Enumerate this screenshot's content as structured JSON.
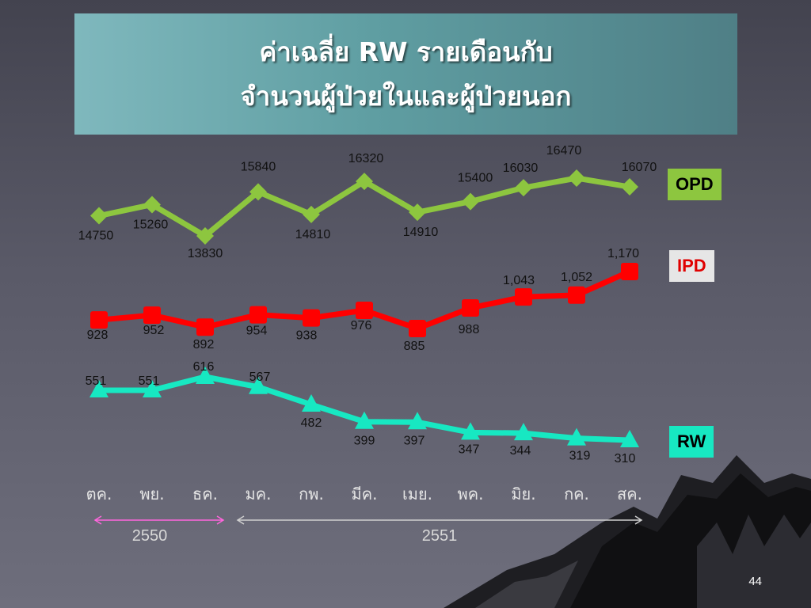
{
  "title": {
    "line1": "ค่าเฉลี่ย RW รายเดือนกับ",
    "line2": "จำนวนผู้ป่วยในและผู้ป่วยนอก"
  },
  "legend": {
    "opd": {
      "label": "OPD",
      "bg": "#8dc63f",
      "fg": "#000000"
    },
    "ipd": {
      "label": "IPD",
      "bg": "#e6e6e6",
      "fg": "#e00000"
    },
    "rw": {
      "label": "RW",
      "bg": "#17e8c2",
      "fg": "#000000"
    }
  },
  "years": [
    {
      "label": "2550",
      "color": "#ff66dd"
    },
    {
      "label": "2551",
      "color": "#cfcfcf"
    }
  ],
  "page_number": "44",
  "chart_data": {
    "type": "line",
    "categories": [
      "ตค.",
      "พย.",
      "ธค.",
      "มค.",
      "กพ.",
      "มีค.",
      "เมย.",
      "พค.",
      "มิย.",
      "กค.",
      "สค."
    ],
    "series": [
      {
        "name": "OPD",
        "color": "#8dc63f",
        "marker": "diamond",
        "values": [
          14750,
          15260,
          13830,
          15840,
          14810,
          16320,
          14910,
          15400,
          16030,
          16470,
          16070
        ],
        "labels": [
          "14750",
          "15260",
          "13830",
          "15840",
          "14810",
          "16320",
          "14910",
          "15400",
          "16030",
          "16470",
          "16070"
        ]
      },
      {
        "name": "IPD",
        "color": "#ff0000",
        "marker": "square",
        "values": [
          928,
          952,
          892,
          954,
          938,
          976,
          885,
          988,
          1043,
          1052,
          1170
        ],
        "labels": [
          "928",
          "952",
          "892",
          "954",
          "938",
          "976",
          "885",
          "988",
          "1,043",
          "1,052",
          "1,170"
        ]
      },
      {
        "name": "RW",
        "color": "#17e8c2",
        "marker": "triangle",
        "values": [
          551,
          551,
          616,
          567,
          482,
          399,
          397,
          347,
          344,
          319,
          310
        ],
        "labels": [
          "551",
          "551",
          "616",
          "567",
          "482",
          "399",
          "397",
          "347",
          "344",
          "319",
          "310"
        ]
      }
    ]
  }
}
